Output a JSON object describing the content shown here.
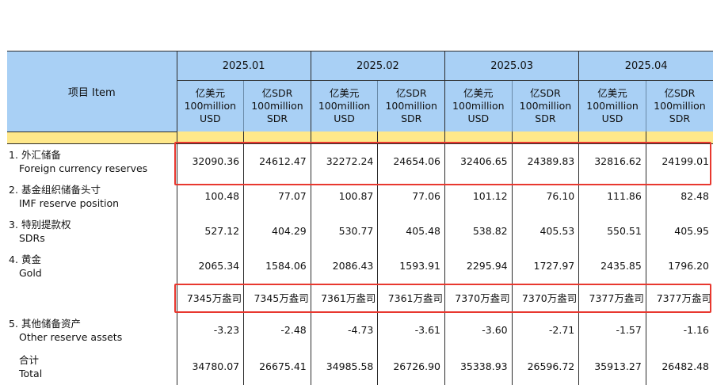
{
  "header": {
    "item_label": "项目  Item",
    "periods": [
      "2025.01",
      "2025.02",
      "2025.03",
      "2025.04"
    ],
    "units": [
      {
        "cn": "亿美元",
        "line2": "100million",
        "line3": "USD"
      },
      {
        "cn": "亿SDR",
        "line2": "100million",
        "line3": "SDR"
      }
    ]
  },
  "rows": [
    {
      "index": "1.",
      "zh": "外汇储备",
      "en": "Foreign currency reserves",
      "values": [
        "32090.36",
        "24612.47",
        "32272.24",
        "24654.06",
        "32406.65",
        "24389.83",
        "32816.62",
        "24199.01"
      ]
    },
    {
      "index": "2.",
      "zh": "基金组织储备头寸",
      "en": "IMF reserve position",
      "values": [
        "100.48",
        "77.07",
        "100.87",
        "77.06",
        "101.12",
        "76.10",
        "111.86",
        "82.48"
      ]
    },
    {
      "index": "3.",
      "zh": "特别提款权",
      "en": "SDRs",
      "values": [
        "527.12",
        "404.29",
        "530.77",
        "405.48",
        "538.82",
        "405.53",
        "550.51",
        "405.95"
      ]
    },
    {
      "index": "4.",
      "zh": "黄金",
      "en": "Gold",
      "values": [
        "2065.34",
        "1584.06",
        "2086.43",
        "1593.91",
        "2295.94",
        "1727.97",
        "2435.85",
        "1796.20"
      ]
    },
    {
      "index": "",
      "zh": "",
      "en": "",
      "values": [
        "7345万盎司",
        "7345万盎司",
        "7361万盎司",
        "7361万盎司",
        "7370万盎司",
        "7370万盎司",
        "7377万盎司",
        "7377万盎司"
      ]
    },
    {
      "index": "5.",
      "zh": "其他储备资产",
      "en": "Other reserve assets",
      "values": [
        "-3.23",
        "-2.48",
        "-4.73",
        "-3.61",
        "-3.60",
        "-2.71",
        "-1.57",
        "-1.16"
      ]
    },
    {
      "index": "",
      "zh": "合计",
      "en": "Total",
      "values": [
        "34780.07",
        "26675.41",
        "34985.58",
        "26726.90",
        "35338.93",
        "26596.72",
        "35913.27",
        "26482.48"
      ]
    }
  ],
  "highlight_color": "#e8382f",
  "header_color": "#a9d0f5",
  "band_color": "#ffe88a"
}
